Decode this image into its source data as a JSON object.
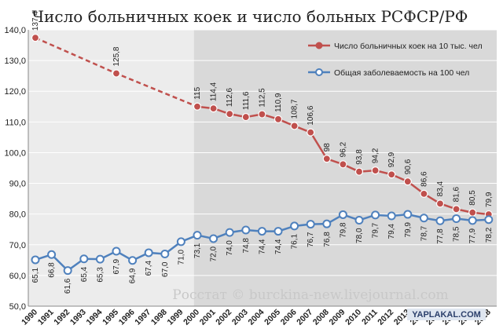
{
  "chart_data": {
    "type": "line",
    "title": "Число больничных коек и число больных РСФСР/РФ",
    "ylim": [
      50,
      140
    ],
    "yticks": [
      "50,0",
      "60,0",
      "70,0",
      "80,0",
      "90,0",
      "100,0",
      "110,0",
      "120,0",
      "130,0",
      "140,0"
    ],
    "categories": [
      "1990",
      "1991",
      "1992",
      "1993",
      "1994",
      "1995",
      "1996",
      "1997",
      "1998",
      "1999",
      "2000",
      "2001",
      "2002",
      "2003",
      "2004",
      "2005",
      "2006",
      "2007",
      "2008",
      "2009",
      "2010",
      "2011",
      "2012",
      "2013",
      "2014",
      "2015",
      "2016",
      "2017",
      "2018"
    ],
    "series": [
      {
        "name": "Число больничных коек  на 10 тыс. чел",
        "color": "#c0504d",
        "values": [
          137.4,
          null,
          null,
          null,
          null,
          125.8,
          null,
          null,
          null,
          null,
          115,
          114.4,
          112.6,
          111.6,
          112.5,
          110.9,
          108.7,
          106.6,
          98,
          96.2,
          93.8,
          94.2,
          92.9,
          90.6,
          86.6,
          83.4,
          81.6,
          80.5,
          79.9
        ],
        "labels": [
          "137,4",
          "",
          "",
          "",
          "",
          "125,8",
          "",
          "",
          "",
          "",
          "115",
          "114,4",
          "112,6",
          "111,6",
          "112,5",
          "110,9",
          "108,7",
          "106,6",
          "98",
          "96,2",
          "93,8",
          "94,2",
          "92,9",
          "90,6",
          "86,6",
          "83,4",
          "81,6",
          "80,5",
          "79,9"
        ]
      },
      {
        "name": "Общая заболеваемость на 100 чел",
        "color": "#4f81bd",
        "values": [
          65.1,
          66.8,
          61.6,
          65.4,
          65.3,
          67.9,
          64.9,
          67.4,
          67.0,
          71.0,
          73.1,
          72.0,
          74.0,
          74.8,
          74.4,
          74.4,
          76.1,
          76.7,
          76.8,
          79.8,
          78.0,
          79.7,
          79.4,
          79.9,
          78.7,
          77.8,
          78.5,
          77.9,
          78.2
        ],
        "labels": [
          "65,1",
          "66,8",
          "61,6",
          "65,4",
          "65,3",
          "67,9",
          "64,9",
          "67,4",
          "67,0",
          "71,0",
          "73,1",
          "72,0",
          "74,0",
          "74,8",
          "74,4",
          "74,4",
          "76,1",
          "76,7",
          "76,8",
          "79,8",
          "78,0",
          "79,7",
          "79,4",
          "79,9",
          "78,7",
          "77,8",
          "78,5",
          "77,9",
          "78,2"
        ]
      }
    ],
    "legend": "top-right",
    "grid": true
  },
  "watermark": "Росстат © burckina-new.livejournal.com",
  "site_mark": "YAPLAKAL.COM"
}
